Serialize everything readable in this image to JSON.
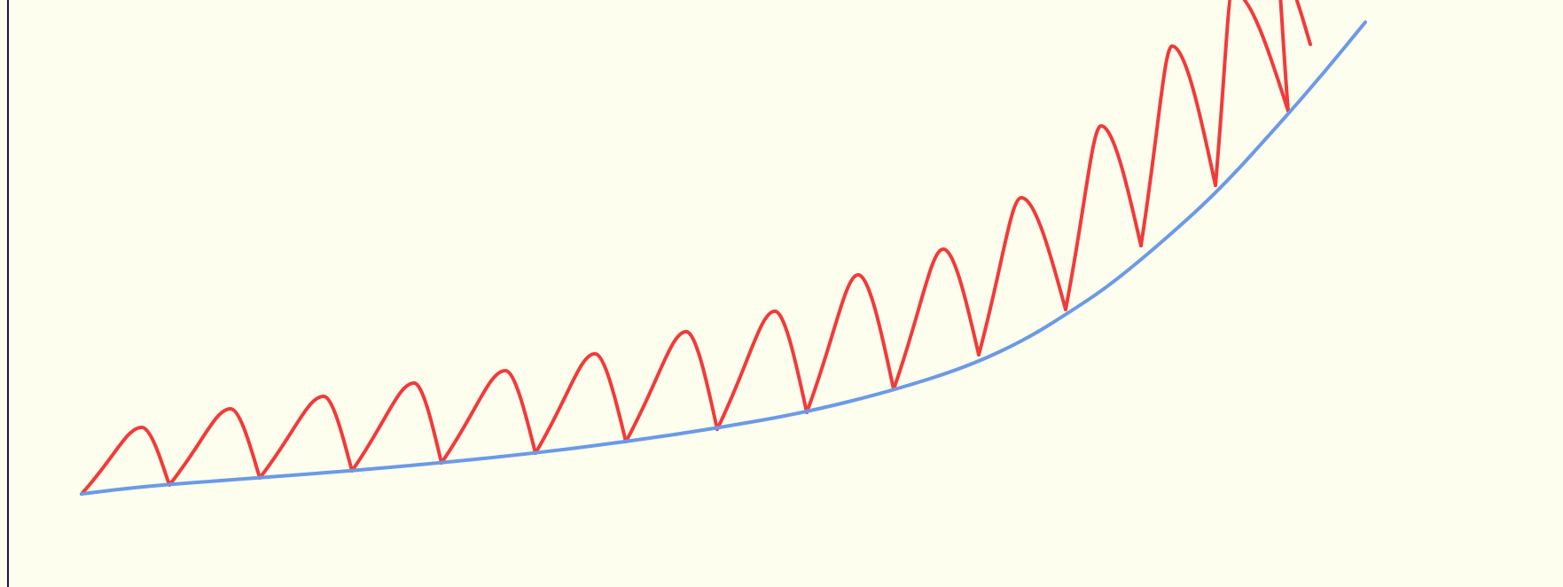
{
  "colors": {
    "background": "#fefeee",
    "left_border": "#1b1464",
    "base_curve": "#6b9ae6",
    "cycloid_arcs": "#f23a3a"
  },
  "diagram": {
    "description_text": "",
    "curves": [
      {
        "name": "base-curve",
        "color_key": "base_curve"
      },
      {
        "name": "cycloid-arcs",
        "color_key": "cycloid_arcs",
        "arc_count": 14
      }
    ]
  }
}
